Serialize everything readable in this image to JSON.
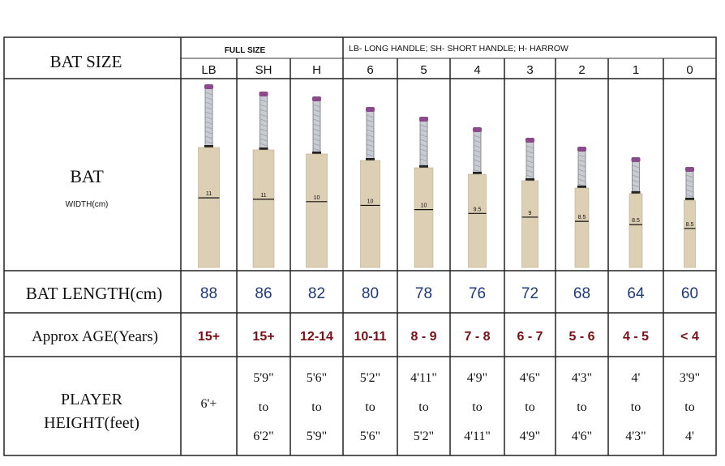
{
  "table": {
    "row_headers": {
      "bat_size": "BAT SIZE",
      "bat": "BAT",
      "bat_width": "WIDTH(cm)",
      "bat_length": "BAT LENGTH(cm)",
      "age": "Approx AGE(Years)",
      "height_line1": "PLAYER",
      "height_line2": "HEIGHT(feet)"
    },
    "group_headers": {
      "full_size": "FULL SIZE",
      "legend": "LB- LONG HANDLE; SH- SHORT HANDLE; H- HARROW"
    },
    "columns": [
      {
        "size": "LB",
        "width": "11",
        "length": "88",
        "age": "15+",
        "height": [
          "6'+"
        ]
      },
      {
        "size": "SH",
        "width": "11",
        "length": "86",
        "age": "15+",
        "height": [
          "5'9\"",
          "to",
          "6'2\""
        ]
      },
      {
        "size": "H",
        "width": "10",
        "length": "82",
        "age": "12-14",
        "height": [
          "5'6\"",
          "to",
          "5'9\""
        ]
      },
      {
        "size": "6",
        "width": "10",
        "length": "80",
        "age": "10-11",
        "height": [
          "5'2\"",
          "to",
          "5'6\""
        ]
      },
      {
        "size": "5",
        "width": "10",
        "length": "78",
        "age": "8 - 9",
        "height": [
          "4'11\"",
          "to",
          "5'2\""
        ]
      },
      {
        "size": "4",
        "width": "9.5",
        "length": "76",
        "age": "7 - 8",
        "height": [
          "4'9\"",
          "to",
          "4'11\""
        ]
      },
      {
        "size": "3",
        "width": "9",
        "length": "72",
        "age": "6 - 7",
        "height": [
          "4'6\"",
          "to",
          "4'9\""
        ]
      },
      {
        "size": "2",
        "width": "8.5",
        "length": "68",
        "age": "5 - 6",
        "height": [
          "4'3\"",
          "to",
          "4'6\""
        ]
      },
      {
        "size": "1",
        "width": "8.5",
        "length": "64",
        "age": "4 - 5",
        "height": [
          "4'",
          "to",
          "4'3\""
        ]
      },
      {
        "size": "0",
        "width": "8.5",
        "length": "60",
        "age": "< 4",
        "height": [
          "3'9\"",
          "to",
          "4'"
        ]
      }
    ]
  },
  "colors": {
    "length_text": "#1f3a78",
    "age_text": "#7a1016",
    "blade": "#dccfb3",
    "grip": "#c8ccd2",
    "cap": "#8a4a8c"
  }
}
